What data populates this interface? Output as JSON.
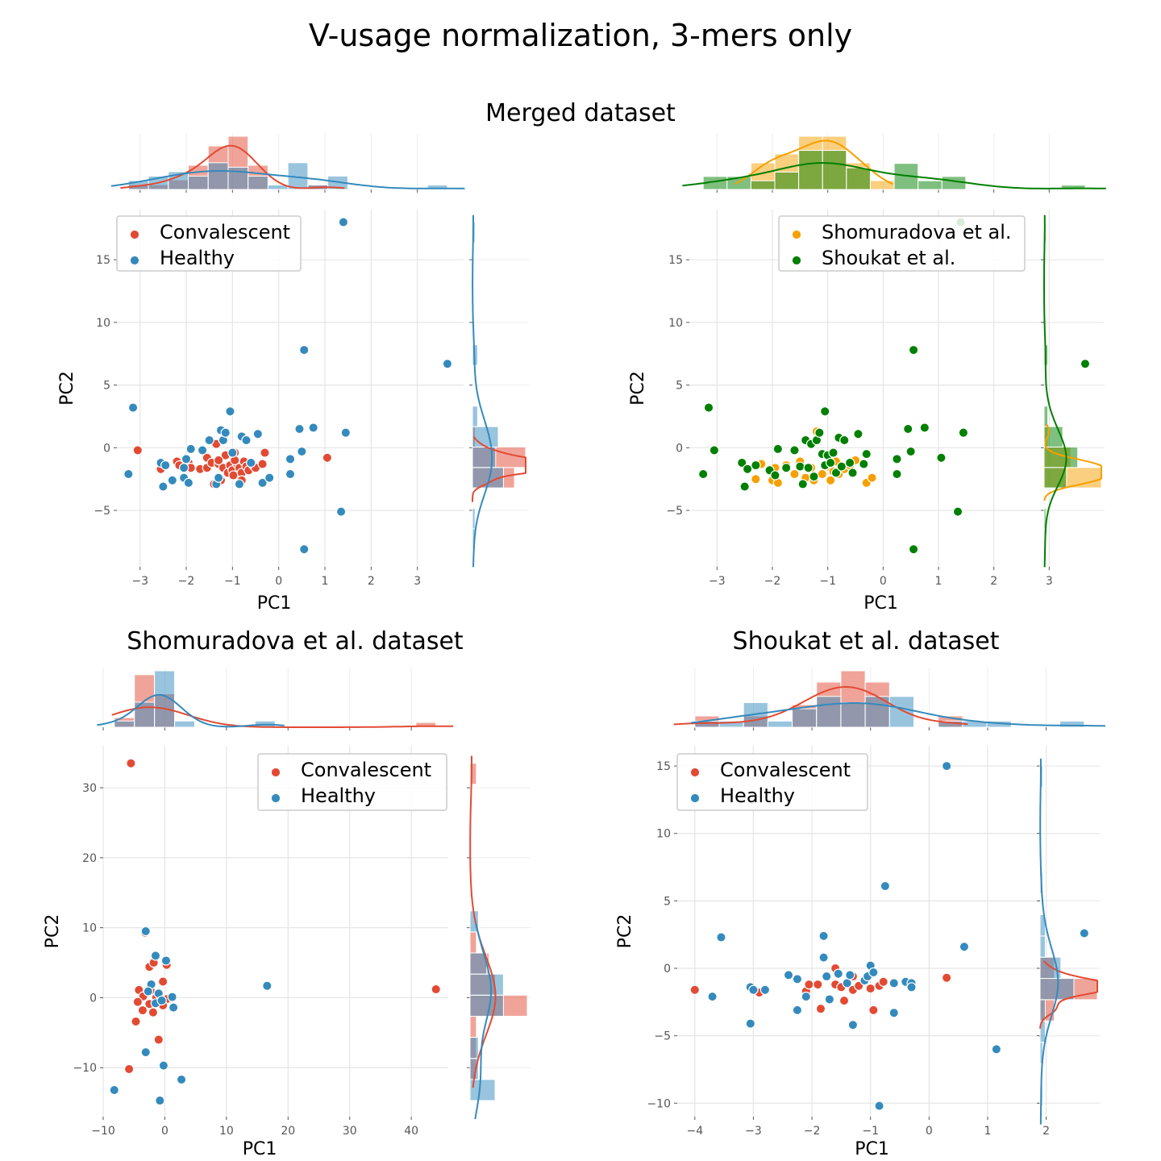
{
  "figure": {
    "title": "V-usage normalization, 3-mers only"
  },
  "chart_data": [
    {
      "type": "scatter",
      "title": "Merged dataset",
      "xlabel": "PC1",
      "ylabel": "PC2",
      "xlim": [
        -3.5,
        4.0
      ],
      "ylim": [
        -9.5,
        19
      ],
      "xticks": [
        -3,
        -2,
        -1,
        0,
        1,
        2,
        3
      ],
      "yticks": [
        -5,
        0,
        5,
        10,
        15
      ],
      "grid": true,
      "legend_position": "top-left",
      "series": [
        {
          "name": "Convalescent",
          "color": "#E24A33",
          "points": [
            [
              -3.05,
              -0.2
            ],
            [
              -2.55,
              -1.7
            ],
            [
              -2.2,
              -1.1
            ],
            [
              -2.15,
              -1.4
            ],
            [
              -1.95,
              -1.2
            ],
            [
              -1.9,
              -1.6
            ],
            [
              -1.7,
              -1.7
            ],
            [
              -1.55,
              -1.6
            ],
            [
              -1.55,
              -0.8
            ],
            [
              -1.45,
              -1.2
            ],
            [
              -1.4,
              -2.9
            ],
            [
              -1.35,
              0.3
            ],
            [
              -1.3,
              -1.3
            ],
            [
              -1.25,
              -2.6
            ],
            [
              -1.2,
              -1.6
            ],
            [
              -1.15,
              -0.6
            ],
            [
              -1.1,
              -2.0
            ],
            [
              -1.05,
              -1.4
            ],
            [
              -1.0,
              -1.8
            ],
            [
              -0.98,
              -2.2
            ],
            [
              -0.95,
              -0.4
            ],
            [
              -0.9,
              -1.3
            ],
            [
              -0.85,
              -1.6
            ],
            [
              -0.8,
              -2.0
            ],
            [
              -0.8,
              -2.6
            ],
            [
              -0.75,
              -1.1
            ],
            [
              -0.7,
              -1.5
            ],
            [
              -0.65,
              -1.8
            ],
            [
              -0.55,
              -1.4
            ],
            [
              -0.5,
              -1.6
            ],
            [
              -0.35,
              -1.3
            ],
            [
              -0.3,
              -0.4
            ],
            [
              1.05,
              -0.8
            ],
            [
              -1.3,
              -1.0
            ],
            [
              -0.95,
              -1.0
            ]
          ]
        },
        {
          "name": "Healthy",
          "color": "#348ABD",
          "points": [
            [
              -3.25,
              -2.1
            ],
            [
              -3.15,
              3.2
            ],
            [
              -2.55,
              -1.2
            ],
            [
              -2.5,
              -3.1
            ],
            [
              -2.45,
              -1.4
            ],
            [
              -2.3,
              -2.6
            ],
            [
              -2.05,
              -1.6
            ],
            [
              -2.05,
              -2.4
            ],
            [
              -2.0,
              -0.9
            ],
            [
              -1.95,
              -2.8
            ],
            [
              -1.9,
              -0.1
            ],
            [
              -1.65,
              -0.2
            ],
            [
              -1.5,
              0.6
            ],
            [
              -1.35,
              -2.9
            ],
            [
              -1.3,
              -2.4
            ],
            [
              -1.25,
              1.4
            ],
            [
              -1.2,
              0.6
            ],
            [
              -1.15,
              1.2
            ],
            [
              -1.05,
              2.9
            ],
            [
              -1.0,
              -0.4
            ],
            [
              -0.85,
              -2.9
            ],
            [
              -0.8,
              0.9
            ],
            [
              -0.7,
              0.6
            ],
            [
              -0.6,
              -1.2
            ],
            [
              -0.45,
              1.1
            ],
            [
              -0.35,
              -2.8
            ],
            [
              -0.2,
              -2.4
            ],
            [
              0.25,
              -0.9
            ],
            [
              0.25,
              -2.1
            ],
            [
              0.45,
              1.5
            ],
            [
              0.5,
              -0.3
            ],
            [
              0.55,
              -8.1
            ],
            [
              0.55,
              7.8
            ],
            [
              0.75,
              1.6
            ],
            [
              1.35,
              -5.1
            ],
            [
              1.4,
              18.0
            ],
            [
              1.45,
              1.2
            ],
            [
              3.65,
              6.7
            ]
          ]
        }
      ]
    },
    {
      "type": "scatter",
      "title": "",
      "xlabel": "PC1",
      "ylabel": "PC2",
      "xlim": [
        -3.5,
        4.0
      ],
      "ylim": [
        -9.5,
        19
      ],
      "xticks": [
        -3,
        -2,
        -1,
        0,
        1,
        2,
        3
      ],
      "yticks": [
        -5,
        0,
        5,
        10,
        15
      ],
      "grid": true,
      "legend_position": "top-right",
      "series": [
        {
          "name": "Shomuradova et al.",
          "color": "#F5A000",
          "points": [
            [
              -2.3,
              -2.5
            ],
            [
              -2.2,
              -1.3
            ],
            [
              -2.0,
              -2.6
            ],
            [
              -1.95,
              -1.6
            ],
            [
              -1.9,
              -2.8
            ],
            [
              -1.75,
              -1.4
            ],
            [
              -1.6,
              -2.1
            ],
            [
              -1.5,
              -1.1
            ],
            [
              -1.4,
              -2.4
            ],
            [
              -1.3,
              -1.6
            ],
            [
              -1.2,
              1.3
            ],
            [
              -1.1,
              -2.1
            ],
            [
              -1.0,
              -1.5
            ],
            [
              -0.9,
              -1.9
            ],
            [
              -0.85,
              -1.1
            ],
            [
              -0.8,
              -2.1
            ],
            [
              -0.7,
              -1.7
            ],
            [
              -0.6,
              -1.4
            ],
            [
              -0.5,
              -1.0
            ],
            [
              -0.3,
              -2.8
            ],
            [
              -0.2,
              -2.4
            ],
            [
              -1.25,
              -2.6
            ],
            [
              -0.95,
              -2.6
            ]
          ]
        },
        {
          "name": "Shoukat et al.",
          "color": "#008000",
          "points": [
            [
              -3.25,
              -2.1
            ],
            [
              -3.15,
              3.2
            ],
            [
              -3.05,
              -0.2
            ],
            [
              -2.55,
              -1.2
            ],
            [
              -2.5,
              -3.1
            ],
            [
              -2.45,
              -1.7
            ],
            [
              -2.3,
              -1.4
            ],
            [
              -2.05,
              -1.8
            ],
            [
              -1.95,
              -2.2
            ],
            [
              -1.9,
              -0.1
            ],
            [
              -1.75,
              -1.6
            ],
            [
              -1.6,
              -0.2
            ],
            [
              -1.5,
              -1.5
            ],
            [
              -1.45,
              -2.9
            ],
            [
              -1.4,
              0.6
            ],
            [
              -1.35,
              -1.6
            ],
            [
              -1.3,
              0.3
            ],
            [
              -1.25,
              -2.3
            ],
            [
              -1.2,
              0.6
            ],
            [
              -1.15,
              1.2
            ],
            [
              -1.1,
              -0.5
            ],
            [
              -1.05,
              2.9
            ],
            [
              -1.05,
              -1.4
            ],
            [
              -1.0,
              -0.6
            ],
            [
              -0.95,
              -1.2
            ],
            [
              -0.9,
              -0.4
            ],
            [
              -0.85,
              -2.0
            ],
            [
              -0.8,
              0.8
            ],
            [
              -0.75,
              -1.5
            ],
            [
              -0.7,
              0.6
            ],
            [
              -0.6,
              -1.2
            ],
            [
              -0.55,
              -2.0
            ],
            [
              -0.45,
              1.1
            ],
            [
              -0.35,
              -1.3
            ],
            [
              -0.3,
              -0.5
            ],
            [
              0.25,
              -0.9
            ],
            [
              0.25,
              -2.1
            ],
            [
              0.45,
              1.5
            ],
            [
              0.5,
              -0.3
            ],
            [
              0.55,
              -8.1
            ],
            [
              0.55,
              7.8
            ],
            [
              0.75,
              1.6
            ],
            [
              1.05,
              -0.8
            ],
            [
              1.35,
              -5.1
            ],
            [
              1.4,
              18.0
            ],
            [
              1.45,
              1.2
            ],
            [
              3.65,
              6.7
            ]
          ]
        }
      ]
    },
    {
      "type": "scatter",
      "title": "Shomuradova et al. dataset",
      "xlabel": "PC1",
      "ylabel": "PC2",
      "xlim": [
        -10,
        46
      ],
      "ylim": [
        -17,
        36
      ],
      "xticks": [
        -10,
        0,
        10,
        20,
        30,
        40
      ],
      "yticks": [
        -10,
        0,
        10,
        20,
        30
      ],
      "grid": true,
      "legend_position": "top-right",
      "series": [
        {
          "name": "Convalescent",
          "color": "#E24A33",
          "points": [
            [
              -5.5,
              33.5
            ],
            [
              -3.2,
              9.3
            ],
            [
              -2.5,
              4.4
            ],
            [
              -1.8,
              5.0
            ],
            [
              0.3,
              4.7
            ],
            [
              -0.3,
              2.3
            ],
            [
              -2.3,
              1.0
            ],
            [
              -4.2,
              1.1
            ],
            [
              -3.5,
              0.2
            ],
            [
              -1.4,
              0.0
            ],
            [
              -0.6,
              -0.3
            ],
            [
              0.3,
              -0.2
            ],
            [
              -4.4,
              -0.6
            ],
            [
              -2.5,
              -0.9
            ],
            [
              -0.3,
              -1.1
            ],
            [
              -3.6,
              -1.8
            ],
            [
              -1.9,
              -2.1
            ],
            [
              -4.7,
              -3.4
            ],
            [
              -1.0,
              -6.0
            ],
            [
              -5.8,
              -10.2
            ],
            [
              44.0,
              1.2
            ]
          ]
        },
        {
          "name": "Healthy",
          "color": "#348ABD",
          "points": [
            [
              -3.1,
              9.5
            ],
            [
              -1.5,
              6.0
            ],
            [
              0.2,
              5.3
            ],
            [
              -2.2,
              1.9
            ],
            [
              -2.7,
              0.9
            ],
            [
              -1.0,
              0.6
            ],
            [
              1.2,
              0.1
            ],
            [
              1.4,
              -1.4
            ],
            [
              -1.5,
              -0.8
            ],
            [
              -0.5,
              -0.4
            ],
            [
              16.6,
              1.7
            ],
            [
              -3.1,
              -7.8
            ],
            [
              -0.2,
              -9.7
            ],
            [
              2.7,
              -11.7
            ],
            [
              -8.2,
              -13.2
            ],
            [
              -0.8,
              -14.7
            ]
          ]
        }
      ]
    },
    {
      "type": "scatter",
      "title": "Shoukat et al. dataset",
      "xlabel": "PC1",
      "ylabel": "PC2",
      "xlim": [
        -4.3,
        2.9
      ],
      "ylim": [
        -11,
        16.5
      ],
      "xticks": [
        -4,
        -3,
        -2,
        -1,
        0,
        1,
        2
      ],
      "yticks": [
        -10,
        -5,
        0,
        5,
        10,
        15
      ],
      "grid": true,
      "legend_position": "top-left",
      "series": [
        {
          "name": "Convalescent",
          "color": "#E24A33",
          "points": [
            [
              -4.0,
              -1.6
            ],
            [
              -2.9,
              -1.8
            ],
            [
              -2.1,
              -1.7
            ],
            [
              -2.05,
              -1.2
            ],
            [
              -1.9,
              -1.2
            ],
            [
              -1.85,
              -3.0
            ],
            [
              -1.6,
              -1.2
            ],
            [
              -1.6,
              0.0
            ],
            [
              -1.5,
              -1.4
            ],
            [
              -1.45,
              -2.4
            ],
            [
              -1.3,
              -0.6
            ],
            [
              -1.3,
              -1.6
            ],
            [
              -1.2,
              -1.3
            ],
            [
              -1.0,
              -1.5
            ],
            [
              -0.95,
              -3.1
            ],
            [
              -0.85,
              -1.3
            ],
            [
              -0.78,
              -1.0
            ],
            [
              0.3,
              -0.7
            ]
          ]
        },
        {
          "name": "Healthy",
          "color": "#348ABD",
          "points": [
            [
              -3.7,
              -2.1
            ],
            [
              -3.55,
              2.3
            ],
            [
              -3.05,
              -4.1
            ],
            [
              -3.05,
              -1.4
            ],
            [
              -3.0,
              -1.6
            ],
            [
              -2.8,
              -1.6
            ],
            [
              -2.4,
              -0.5
            ],
            [
              -2.25,
              -0.8
            ],
            [
              -2.25,
              -3.1
            ],
            [
              -2.1,
              -2.1
            ],
            [
              -1.8,
              2.4
            ],
            [
              -1.8,
              0.8
            ],
            [
              -1.75,
              -0.6
            ],
            [
              -1.7,
              -2.3
            ],
            [
              -1.55,
              -0.4
            ],
            [
              -1.4,
              -1.1
            ],
            [
              -1.35,
              -0.5
            ],
            [
              -1.3,
              -4.2
            ],
            [
              -1.1,
              -0.9
            ],
            [
              -1.05,
              -0.6
            ],
            [
              -1.0,
              0.2
            ],
            [
              -0.95,
              -0.3
            ],
            [
              -0.75,
              6.1
            ],
            [
              -0.85,
              -10.2
            ],
            [
              -0.6,
              -1.1
            ],
            [
              -0.6,
              -3.3
            ],
            [
              -0.4,
              -1.0
            ],
            [
              -0.3,
              -1.1
            ],
            [
              -0.3,
              -1.4
            ],
            [
              0.3,
              15.0
            ],
            [
              0.6,
              1.6
            ],
            [
              1.15,
              -6.0
            ],
            [
              2.65,
              2.6
            ]
          ]
        }
      ]
    }
  ]
}
